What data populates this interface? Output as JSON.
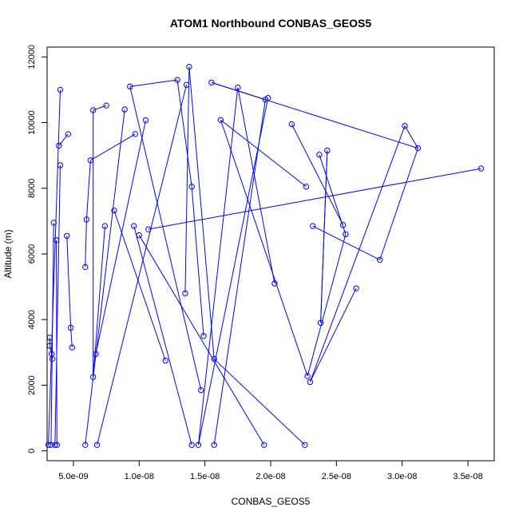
{
  "chart_data": {
    "type": "scatter",
    "title": "ATOM1 Northbound CONBAS_GEOS5",
    "xlabel": "CONBAS_GEOS5",
    "ylabel": "Altitude (m)",
    "xlim": [
      3e-09,
      3.7e-08
    ],
    "ylim": [
      -300,
      12300
    ],
    "x_ticks": [
      5e-09,
      1e-08,
      1.5e-08,
      2e-08,
      2.5e-08,
      3e-08,
      3.5e-08
    ],
    "x_tick_labels": [
      "5.0e-09",
      "1.0e-08",
      "1.5e-08",
      "2.0e-08",
      "2.5e-08",
      "3.0e-08",
      "3.5e-08"
    ],
    "y_ticks": [
      0,
      2000,
      4000,
      6000,
      8000,
      10000,
      12000
    ],
    "y_tick_labels": [
      "0",
      "2000",
      "4000",
      "6000",
      "8000",
      "10000",
      "12000"
    ],
    "grid": false,
    "color": "#0000ff",
    "series": [
      {
        "style": "line+points",
        "x": [
          3.2e-09,
          3.5e-09,
          4.5e-09,
          4.8e-09,
          6.3e-09,
          9.5e-09,
          1.2e-08,
          9.2e-09,
          8.8e-09,
          1.35e-08,
          1.45e-08,
          1.6e-08,
          1.38e-08,
          1.72e-08,
          2.27e-08,
          1.55e-08,
          1.78e-08,
          2.65e-08,
          2.25e-08,
          2.55e-08,
          2.35e-08,
          2.43e-08,
          2.38e-08,
          2.5e-08,
          3.12e-08,
          1.95e-08,
          1.3e-08,
          9.5e-09,
          6.5e-09,
          3.3e-09
        ],
        "y": [
          180,
          3450,
          6550,
          3150,
          8850,
          11100,
          2750,
          10400,
          6850,
          7800,
          3500,
          10050,
          11650,
          11050,
          8050,
          1850,
          2800,
          4950,
          2250,
          6850,
          9000,
          9150,
          3900,
          6550,
          9200,
          10700,
          11300,
          9650,
          2250,
          180
        ]
      }
    ],
    "points": [
      {
        "x": 3.1e-09,
        "y": 180
      },
      {
        "x": 3.3e-09,
        "y": 180
      },
      {
        "x": 3.6e-09,
        "y": 180
      },
      {
        "x": 3.75e-09,
        "y": 180
      },
      {
        "x": 3.2e-09,
        "y": 3450
      },
      {
        "x": 3.2e-09,
        "y": 3200
      },
      {
        "x": 3.35e-09,
        "y": 2950
      },
      {
        "x": 3.4e-09,
        "y": 2800
      },
      {
        "x": 3.5e-09,
        "y": 6950
      },
      {
        "x": 3.7e-09,
        "y": 6420
      },
      {
        "x": 3.9e-09,
        "y": 9300
      },
      {
        "x": 4e-09,
        "y": 8700
      },
      {
        "x": 4e-09,
        "y": 11000
      },
      {
        "x": 4.5e-09,
        "y": 6550
      },
      {
        "x": 4.6e-09,
        "y": 9650
      },
      {
        "x": 4.8e-09,
        "y": 3750
      },
      {
        "x": 4.9e-09,
        "y": 3150
      },
      {
        "x": 5.9e-09,
        "y": 180
      },
      {
        "x": 5.9e-09,
        "y": 5600
      },
      {
        "x": 6e-09,
        "y": 7050
      },
      {
        "x": 6.3e-09,
        "y": 8850
      },
      {
        "x": 6.5e-09,
        "y": 10380
      },
      {
        "x": 6.5e-09,
        "y": 2250
      },
      {
        "x": 6.7e-09,
        "y": 2950
      },
      {
        "x": 6.8e-09,
        "y": 180
      },
      {
        "x": 7.4e-09,
        "y": 6850
      },
      {
        "x": 7.5e-09,
        "y": 10520
      },
      {
        "x": 8.1e-09,
        "y": 7320
      },
      {
        "x": 8.9e-09,
        "y": 10400
      },
      {
        "x": 9.3e-09,
        "y": 11100
      },
      {
        "x": 9.6e-09,
        "y": 6850
      },
      {
        "x": 9.7e-09,
        "y": 9650
      },
      {
        "x": 1e-08,
        "y": 6570
      },
      {
        "x": 1.05e-08,
        "y": 10070
      },
      {
        "x": 1.07e-08,
        "y": 6750
      },
      {
        "x": 1.2e-08,
        "y": 2750
      },
      {
        "x": 1.29e-08,
        "y": 11300
      },
      {
        "x": 1.35e-08,
        "y": 4800
      },
      {
        "x": 1.36e-08,
        "y": 11150
      },
      {
        "x": 1.38e-08,
        "y": 11700
      },
      {
        "x": 1.4e-08,
        "y": 8050
      },
      {
        "x": 1.4e-08,
        "y": 180
      },
      {
        "x": 1.45e-08,
        "y": 180
      },
      {
        "x": 1.47e-08,
        "y": 1850
      },
      {
        "x": 1.49e-08,
        "y": 3500
      },
      {
        "x": 1.55e-08,
        "y": 11220
      },
      {
        "x": 1.57e-08,
        "y": 2800
      },
      {
        "x": 1.57e-08,
        "y": 180
      },
      {
        "x": 1.62e-08,
        "y": 10080
      },
      {
        "x": 1.75e-08,
        "y": 11070
      },
      {
        "x": 1.95e-08,
        "y": 180
      },
      {
        "x": 1.96e-08,
        "y": 10700
      },
      {
        "x": 1.98e-08,
        "y": 10750
      },
      {
        "x": 2.03e-08,
        "y": 5100
      },
      {
        "x": 2.16e-08,
        "y": 9950
      },
      {
        "x": 2.26e-08,
        "y": 180
      },
      {
        "x": 2.27e-08,
        "y": 8050
      },
      {
        "x": 2.28e-08,
        "y": 2280
      },
      {
        "x": 2.3e-08,
        "y": 2100
      },
      {
        "x": 2.32e-08,
        "y": 6850
      },
      {
        "x": 2.37e-08,
        "y": 9020
      },
      {
        "x": 2.38e-08,
        "y": 3900
      },
      {
        "x": 2.43e-08,
        "y": 9150
      },
      {
        "x": 2.55e-08,
        "y": 6880
      },
      {
        "x": 2.57e-08,
        "y": 6600
      },
      {
        "x": 2.65e-08,
        "y": 4950
      },
      {
        "x": 2.83e-08,
        "y": 5820
      },
      {
        "x": 3.02e-08,
        "y": 9900
      },
      {
        "x": 3.12e-08,
        "y": 9220
      },
      {
        "x": 3.6e-08,
        "y": 8600
      }
    ],
    "segments": [
      [
        0,
        12
      ],
      [
        1,
        8
      ],
      [
        2,
        11
      ],
      [
        3,
        9
      ],
      [
        4,
        5
      ],
      [
        5,
        6
      ],
      [
        6,
        7
      ],
      [
        10,
        14
      ],
      [
        13,
        15
      ],
      [
        15,
        16
      ],
      [
        17,
        28
      ],
      [
        18,
        19
      ],
      [
        19,
        20
      ],
      [
        20,
        31
      ],
      [
        21,
        22
      ],
      [
        22,
        25
      ],
      [
        23,
        33
      ],
      [
        24,
        38
      ],
      [
        26,
        21
      ],
      [
        27,
        35
      ],
      [
        29,
        36
      ],
      [
        30,
        41
      ],
      [
        32,
        50
      ],
      [
        34,
        69
      ],
      [
        36,
        40
      ],
      [
        37,
        39
      ],
      [
        39,
        46
      ],
      [
        40,
        44
      ],
      [
        42,
        49
      ],
      [
        43,
        29
      ],
      [
        45,
        68
      ],
      [
        46,
        55
      ],
      [
        47,
        51
      ],
      [
        48,
        57
      ],
      [
        49,
        53
      ],
      [
        51,
        45
      ],
      [
        52,
        42
      ],
      [
        54,
        63
      ],
      [
        56,
        48
      ],
      [
        58,
        67
      ],
      [
        59,
        66
      ],
      [
        60,
        64
      ],
      [
        61,
        62
      ],
      [
        62,
        61
      ],
      [
        63,
        70
      ],
      [
        64,
        57
      ],
      [
        65,
        58
      ],
      [
        66,
        68
      ],
      [
        67,
        68
      ],
      [
        69,
        70
      ]
    ]
  }
}
